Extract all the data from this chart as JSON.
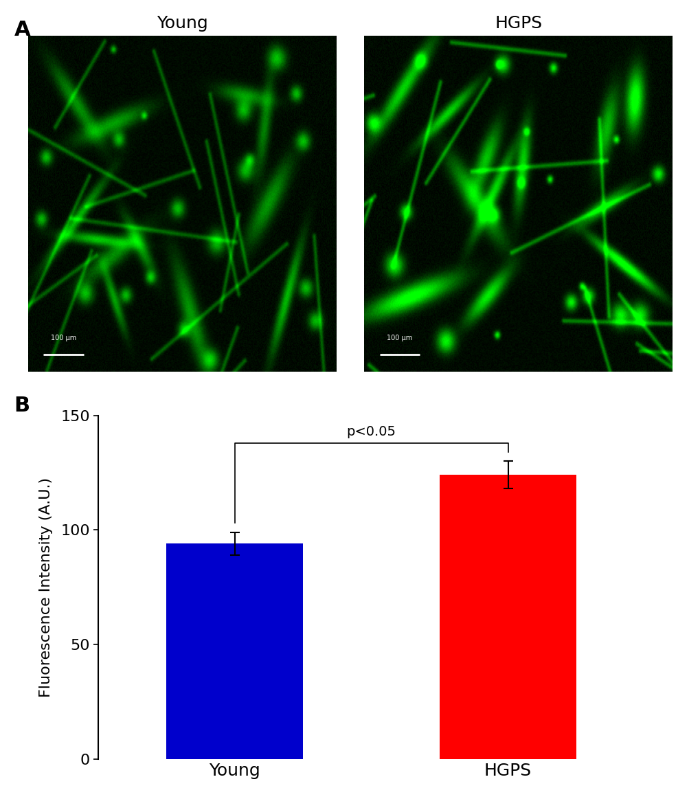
{
  "panel_A_label": "A",
  "panel_B_label": "B",
  "img_label_young": "Young",
  "img_label_hgps": "HGPS",
  "bar_categories": [
    "Young",
    "HGPS"
  ],
  "bar_values": [
    94,
    124
  ],
  "bar_errors": [
    5,
    6
  ],
  "bar_colors": [
    "#0000CC",
    "#FF0000"
  ],
  "ylabel": "Fluorescence Intensity (A.U.)",
  "ylim": [
    0,
    150
  ],
  "yticks": [
    0,
    50,
    100,
    150
  ],
  "significance_text": "p<0.05",
  "bar_width": 0.5,
  "background_color": "#ffffff"
}
